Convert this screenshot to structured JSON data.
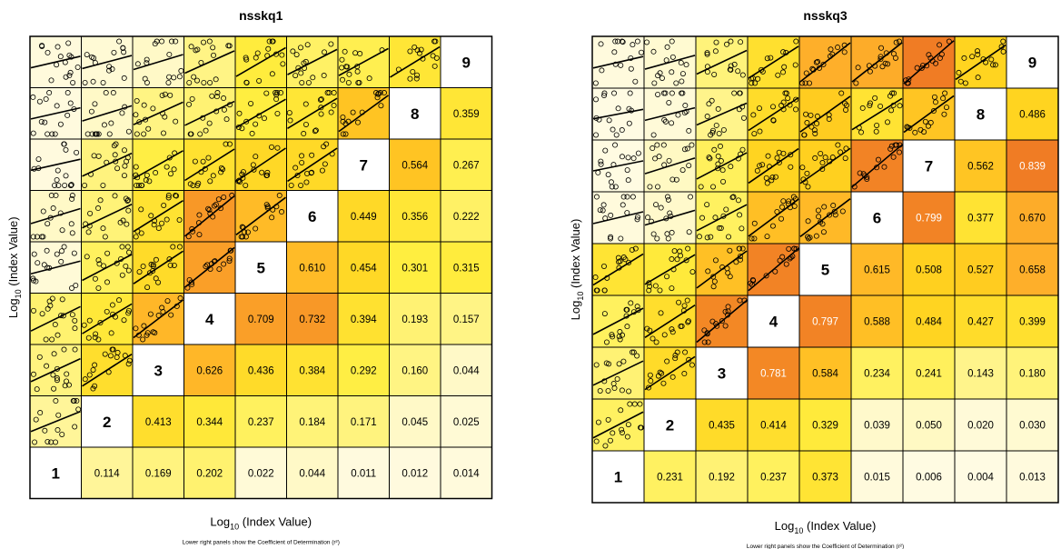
{
  "chart_data": [
    {
      "type": "heatmap",
      "title": "nsskq1",
      "xlabel": "Log10 (Index Value)",
      "ylabel": "Log10 (Index Value)",
      "footnote": "Lower right panels show the Coefficient of Determination (r²)",
      "variables": [
        "1",
        "2",
        "3",
        "4",
        "5",
        "6",
        "7",
        "8",
        "9"
      ],
      "r2": [
        [
          null,
          0.114,
          0.169,
          0.202,
          0.022,
          0.044,
          0.011,
          0.012,
          0.014
        ],
        [
          null,
          null,
          0.413,
          0.344,
          0.237,
          0.184,
          0.171,
          0.045,
          0.025
        ],
        [
          null,
          null,
          null,
          0.626,
          0.436,
          0.384,
          0.292,
          0.16,
          0.044
        ],
        [
          null,
          null,
          null,
          null,
          0.709,
          0.732,
          0.394,
          0.193,
          0.157
        ],
        [
          null,
          null,
          null,
          null,
          null,
          0.61,
          0.454,
          0.301,
          0.315
        ],
        [
          null,
          null,
          null,
          null,
          null,
          null,
          0.449,
          0.356,
          0.222
        ],
        [
          null,
          null,
          null,
          null,
          null,
          null,
          null,
          0.564,
          0.267
        ],
        [
          null,
          null,
          null,
          null,
          null,
          null,
          null,
          null,
          0.359
        ],
        [
          null,
          null,
          null,
          null,
          null,
          null,
          null,
          null,
          null
        ]
      ],
      "color_scale": [
        "#fffbe6",
        "#fff6a0",
        "#ffee40",
        "#ffd21e",
        "#ffb22a",
        "#f07c24"
      ]
    },
    {
      "type": "heatmap",
      "title": "nsskq3",
      "xlabel": "Log10 (Index Value)",
      "ylabel": "Log10 (Index Value)",
      "footnote": "Lower right panels show the Coefficient of Determination (r²)",
      "variables": [
        "1",
        "2",
        "3",
        "4",
        "5",
        "6",
        "7",
        "8",
        "9"
      ],
      "r2": [
        [
          null,
          0.231,
          0.192,
          0.237,
          0.373,
          0.015,
          0.006,
          0.004,
          0.013
        ],
        [
          null,
          null,
          0.435,
          0.414,
          0.329,
          0.039,
          0.05,
          0.02,
          0.03
        ],
        [
          null,
          null,
          null,
          0.781,
          0.584,
          0.234,
          0.241,
          0.143,
          0.18
        ],
        [
          null,
          null,
          null,
          null,
          0.797,
          0.588,
          0.484,
          0.427,
          0.399
        ],
        [
          null,
          null,
          null,
          null,
          null,
          0.615,
          0.508,
          0.527,
          0.658
        ],
        [
          null,
          null,
          null,
          null,
          null,
          null,
          0.799,
          0.377,
          0.67
        ],
        [
          null,
          null,
          null,
          null,
          null,
          null,
          null,
          0.562,
          0.839
        ],
        [
          null,
          null,
          null,
          null,
          null,
          null,
          null,
          null,
          0.486
        ],
        [
          null,
          null,
          null,
          null,
          null,
          null,
          null,
          null,
          null
        ]
      ],
      "color_scale": [
        "#fffbe6",
        "#fff6a0",
        "#ffee40",
        "#ffd21e",
        "#ffb22a",
        "#f07c24"
      ]
    }
  ]
}
